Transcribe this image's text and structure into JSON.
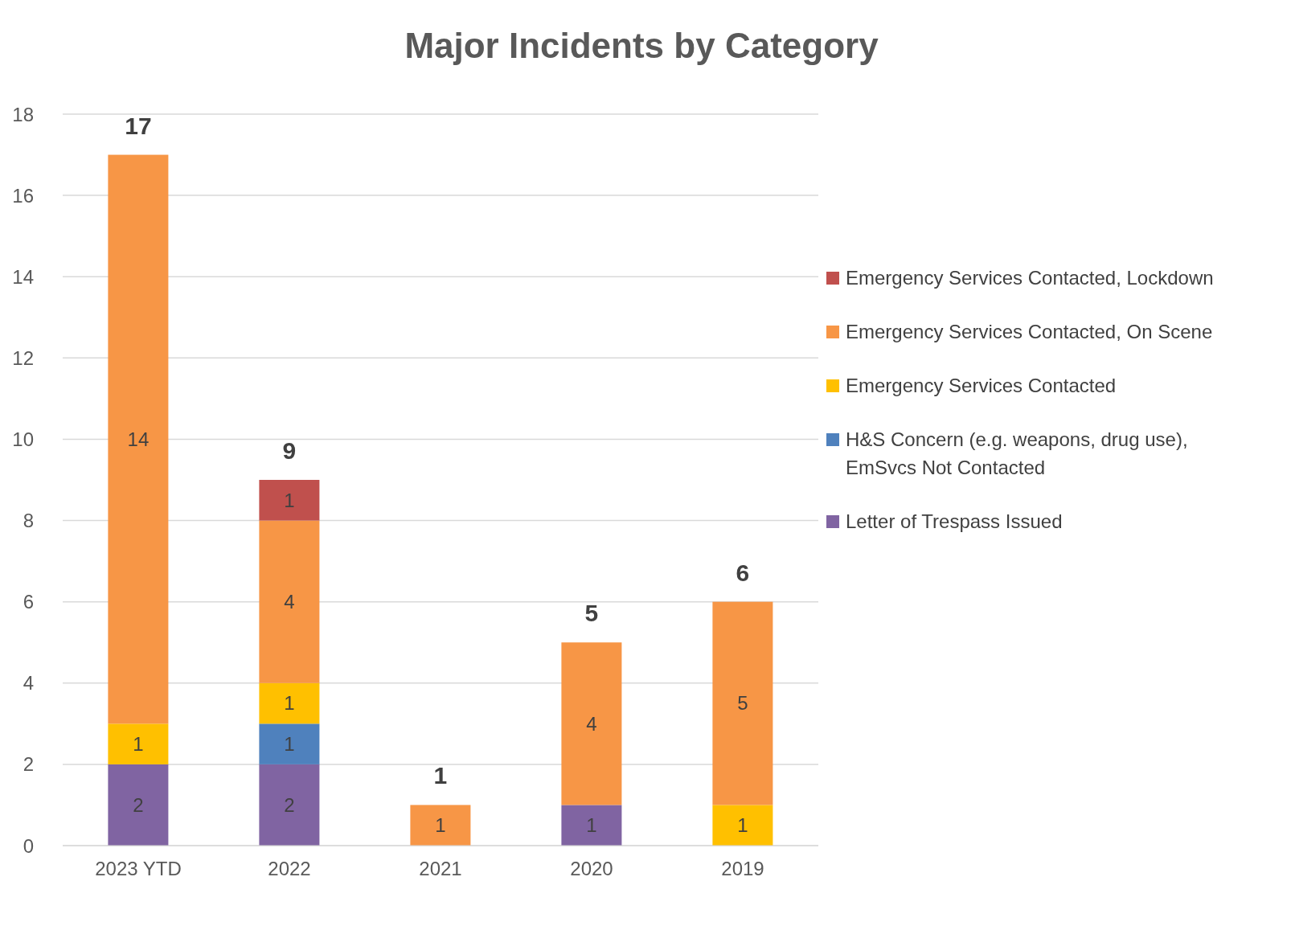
{
  "chart_data": {
    "type": "bar",
    "title": "Major Incidents by Category",
    "categories": [
      "2023 YTD",
      "2022",
      "2021",
      "2020",
      "2019"
    ],
    "stacked": true,
    "series": [
      {
        "name": "Letter of Trespass Issued",
        "color": "#8064a2",
        "values": [
          2,
          2,
          null,
          1,
          null
        ]
      },
      {
        "name": "H&S Concern (e.g. weapons, drug use), EmSvcs Not Contacted",
        "color": "#4f81bd",
        "values": [
          null,
          1,
          null,
          null,
          null
        ]
      },
      {
        "name": "Emergency Services Contacted",
        "color": "#ffc000",
        "values": [
          1,
          1,
          null,
          null,
          1
        ]
      },
      {
        "name": "Emergency Services Contacted, On Scene",
        "color": "#f79646",
        "values": [
          14,
          4,
          1,
          4,
          5
        ]
      },
      {
        "name": "Emergency Services Contacted, Lockdown",
        "color": "#c0504d",
        "values": [
          null,
          1,
          null,
          null,
          null
        ]
      }
    ],
    "totals": [
      "17",
      "9",
      "1",
      "5",
      "6"
    ],
    "data_labels": true,
    "ylim": [
      0,
      18
    ],
    "yticks": [
      0,
      2,
      4,
      6,
      8,
      10,
      12,
      14,
      16,
      18
    ],
    "grid": "y",
    "legend": "right"
  }
}
